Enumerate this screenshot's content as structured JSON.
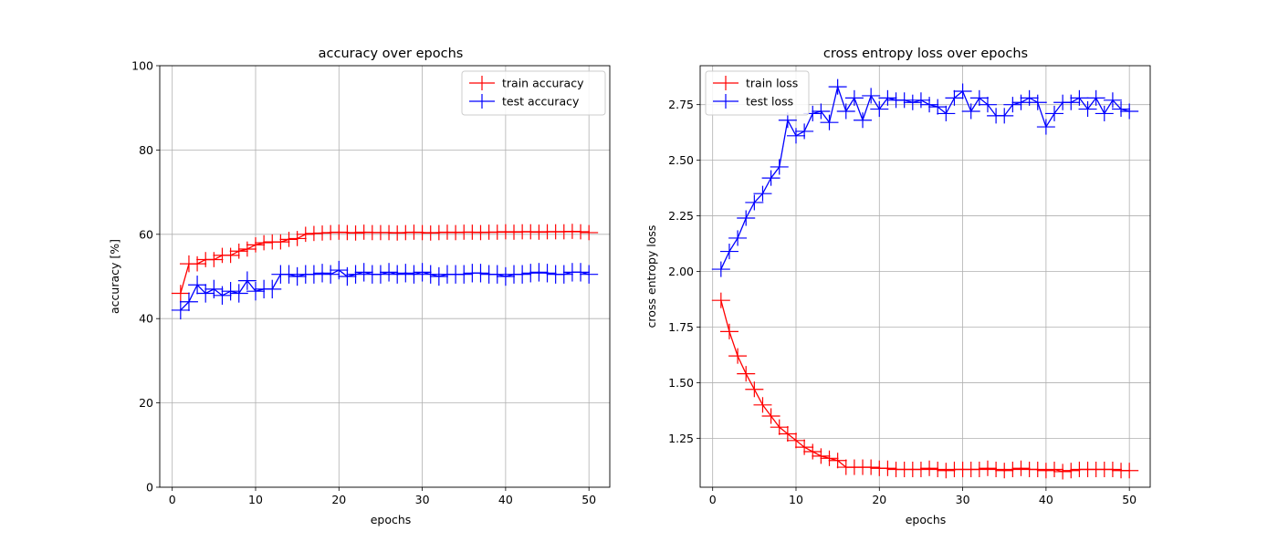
{
  "figure": {
    "colors": {
      "train": "#ff0000",
      "test": "#0000ff",
      "grid": "#b0b0b0"
    }
  },
  "chart_data": [
    {
      "type": "line",
      "title": "accuracy over epochs",
      "xlabel": "epochs",
      "ylabel": "accuracy [%]",
      "xlim": [
        -1.5,
        52.5
      ],
      "ylim": [
        0,
        100
      ],
      "xticks": [
        0,
        10,
        20,
        30,
        40,
        50
      ],
      "xtick_labels": [
        "0",
        "10",
        "20",
        "30",
        "40",
        "50"
      ],
      "yticks": [
        0,
        20,
        40,
        60,
        80,
        100
      ],
      "ytick_labels": [
        "0",
        "20",
        "40",
        "60",
        "80",
        "100"
      ],
      "grid": true,
      "legend_position": "top-right",
      "marker": "plus-with-errorbars",
      "x": [
        1,
        2,
        3,
        4,
        5,
        6,
        7,
        8,
        9,
        10,
        11,
        12,
        13,
        14,
        15,
        16,
        17,
        18,
        19,
        20,
        21,
        22,
        23,
        24,
        25,
        26,
        27,
        28,
        29,
        30,
        31,
        32,
        33,
        34,
        35,
        36,
        37,
        38,
        39,
        40,
        41,
        42,
        43,
        44,
        45,
        46,
        47,
        48,
        49,
        50
      ],
      "series": [
        {
          "name": "train accuracy",
          "color": "#ff0000",
          "values": [
            46.0,
            53.0,
            53.0,
            54.0,
            54.0,
            55.0,
            55.0,
            56.0,
            56.5,
            57.5,
            58.0,
            58.2,
            58.2,
            58.8,
            59.0,
            60.0,
            60.2,
            60.3,
            60.4,
            60.5,
            60.4,
            60.3,
            60.5,
            60.4,
            60.4,
            60.4,
            60.3,
            60.4,
            60.5,
            60.4,
            60.3,
            60.4,
            60.5,
            60.4,
            60.5,
            60.5,
            60.4,
            60.5,
            60.5,
            60.6,
            60.5,
            60.6,
            60.6,
            60.5,
            60.6,
            60.6,
            60.6,
            60.7,
            60.6,
            60.4
          ],
          "error": [
            2.0,
            2.0,
            1.8,
            1.8,
            1.8,
            1.8,
            1.8,
            1.8,
            1.8,
            1.8,
            1.8,
            1.8,
            1.8,
            1.8,
            1.8,
            1.8,
            1.8,
            1.8,
            1.8,
            1.8,
            1.8,
            1.8,
            1.8,
            1.8,
            1.8,
            1.8,
            1.8,
            1.8,
            1.8,
            1.8,
            1.8,
            1.8,
            1.8,
            1.8,
            1.8,
            1.8,
            1.8,
            1.8,
            1.8,
            1.8,
            1.8,
            1.8,
            1.8,
            1.8,
            1.8,
            1.8,
            1.8,
            1.8,
            1.8,
            1.8
          ]
        },
        {
          "name": "test accuracy",
          "color": "#0000ff",
          "values": [
            42.0,
            44.0,
            48.0,
            46.0,
            47.0,
            45.5,
            46.5,
            46.0,
            49.0,
            46.5,
            47.0,
            47.0,
            50.5,
            50.5,
            50.0,
            50.5,
            50.5,
            50.8,
            50.5,
            51.5,
            50.0,
            50.5,
            51.0,
            50.5,
            50.5,
            51.0,
            50.5,
            50.8,
            50.5,
            51.0,
            50.5,
            50.0,
            50.5,
            50.5,
            50.5,
            50.8,
            50.8,
            50.5,
            50.5,
            50.0,
            50.5,
            50.5,
            50.8,
            51.0,
            50.8,
            50.5,
            50.5,
            51.0,
            51.0,
            50.5
          ],
          "error": [
            2.2,
            2.2,
            2.2,
            2.2,
            2.2,
            2.2,
            2.2,
            2.2,
            2.2,
            2.2,
            2.2,
            2.2,
            2.2,
            2.2,
            2.2,
            2.2,
            2.2,
            2.2,
            2.2,
            2.2,
            2.2,
            2.2,
            2.2,
            2.2,
            2.2,
            2.2,
            2.2,
            2.2,
            2.2,
            2.2,
            2.2,
            2.2,
            2.2,
            2.2,
            2.2,
            2.2,
            2.2,
            2.2,
            2.2,
            2.2,
            2.2,
            2.2,
            2.2,
            2.2,
            2.2,
            2.2,
            2.2,
            2.2,
            2.2,
            2.2
          ]
        }
      ]
    },
    {
      "type": "line",
      "title": "cross entropy loss over epochs",
      "xlabel": "epochs",
      "ylabel": "cross entropy loss",
      "xlim": [
        -1.5,
        52.5
      ],
      "ylim": [
        1.03,
        2.925
      ],
      "xticks": [
        0,
        10,
        20,
        30,
        40,
        50
      ],
      "xtick_labels": [
        "0",
        "10",
        "20",
        "30",
        "40",
        "50"
      ],
      "yticks": [
        1.25,
        1.5,
        1.75,
        2.0,
        2.25,
        2.5,
        2.75
      ],
      "ytick_labels": [
        "1.25",
        "1.50",
        "1.75",
        "2.00",
        "2.25",
        "2.50",
        "2.75"
      ],
      "grid": true,
      "legend_position": "top-left",
      "marker": "plus-with-errorbars",
      "x": [
        1,
        2,
        3,
        4,
        5,
        6,
        7,
        8,
        9,
        10,
        11,
        12,
        13,
        14,
        15,
        16,
        17,
        18,
        19,
        20,
        21,
        22,
        23,
        24,
        25,
        26,
        27,
        28,
        29,
        30,
        31,
        32,
        33,
        34,
        35,
        36,
        37,
        38,
        39,
        40,
        41,
        42,
        43,
        44,
        45,
        46,
        47,
        48,
        49,
        50
      ],
      "series": [
        {
          "name": "train loss",
          "color": "#ff0000",
          "values": [
            1.87,
            1.73,
            1.62,
            1.54,
            1.47,
            1.4,
            1.35,
            1.3,
            1.27,
            1.24,
            1.21,
            1.19,
            1.17,
            1.16,
            1.15,
            1.12,
            1.12,
            1.12,
            1.12,
            1.115,
            1.115,
            1.11,
            1.11,
            1.11,
            1.11,
            1.115,
            1.11,
            1.105,
            1.11,
            1.11,
            1.11,
            1.11,
            1.115,
            1.11,
            1.105,
            1.11,
            1.115,
            1.11,
            1.11,
            1.105,
            1.11,
            1.1,
            1.105,
            1.11,
            1.11,
            1.11,
            1.11,
            1.11,
            1.105,
            1.105
          ],
          "error": [
            0.035,
            0.035,
            0.035,
            0.035,
            0.035,
            0.035,
            0.035,
            0.035,
            0.035,
            0.035,
            0.035,
            0.035,
            0.035,
            0.035,
            0.035,
            0.035,
            0.035,
            0.035,
            0.035,
            0.035,
            0.035,
            0.035,
            0.035,
            0.035,
            0.035,
            0.035,
            0.035,
            0.035,
            0.035,
            0.035,
            0.035,
            0.035,
            0.035,
            0.035,
            0.035,
            0.035,
            0.035,
            0.035,
            0.035,
            0.035,
            0.035,
            0.035,
            0.035,
            0.035,
            0.035,
            0.035,
            0.035,
            0.035,
            0.035,
            0.035
          ]
        },
        {
          "name": "test loss",
          "color": "#0000ff",
          "values": [
            2.01,
            2.09,
            2.15,
            2.24,
            2.31,
            2.35,
            2.42,
            2.47,
            2.68,
            2.61,
            2.63,
            2.71,
            2.72,
            2.67,
            2.83,
            2.72,
            2.78,
            2.68,
            2.79,
            2.73,
            2.78,
            2.77,
            2.77,
            2.76,
            2.77,
            2.75,
            2.74,
            2.71,
            2.78,
            2.81,
            2.72,
            2.78,
            2.75,
            2.7,
            2.7,
            2.75,
            2.76,
            2.78,
            2.76,
            2.65,
            2.71,
            2.76,
            2.76,
            2.78,
            2.73,
            2.78,
            2.71,
            2.77,
            2.73,
            2.72
          ],
          "error": [
            0.035,
            0.035,
            0.035,
            0.035,
            0.035,
            0.035,
            0.035,
            0.035,
            0.035,
            0.035,
            0.035,
            0.035,
            0.035,
            0.035,
            0.035,
            0.035,
            0.035,
            0.035,
            0.035,
            0.035,
            0.035,
            0.035,
            0.035,
            0.035,
            0.035,
            0.035,
            0.035,
            0.035,
            0.035,
            0.035,
            0.035,
            0.035,
            0.035,
            0.035,
            0.035,
            0.035,
            0.035,
            0.035,
            0.035,
            0.035,
            0.035,
            0.035,
            0.035,
            0.035,
            0.035,
            0.035,
            0.035,
            0.035,
            0.035,
            0.035
          ]
        }
      ]
    }
  ]
}
